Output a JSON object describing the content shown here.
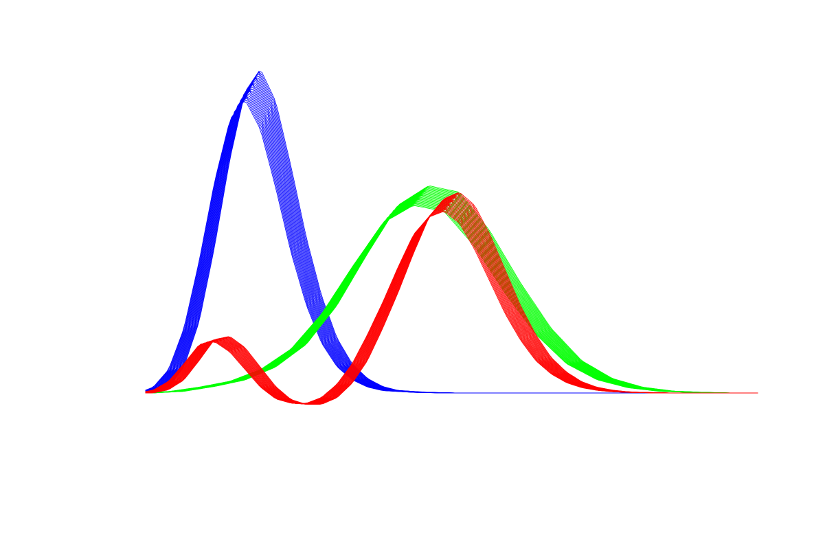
{
  "chart_data": {
    "type": "line",
    "title": "",
    "xlabel": "",
    "ylabel": "",
    "grid": false,
    "legend": "none",
    "axes_visible": false,
    "xlim": [
      380,
      780
    ],
    "ylim": [
      -0.05,
      1.0
    ],
    "series": [
      {
        "color": "#0000ff",
        "curve_count": 25,
        "x": [
          380,
          390,
          400,
          410,
          420,
          430,
          440,
          450,
          460,
          470,
          480,
          490,
          500,
          510,
          520,
          530,
          540,
          560,
          580,
          600,
          620,
          640,
          660,
          680,
          700,
          720,
          740,
          760,
          780
        ],
        "y": [
          0.0,
          0.02,
          0.08,
          0.22,
          0.45,
          0.72,
          0.93,
          1.0,
          0.9,
          0.7,
          0.48,
          0.3,
          0.17,
          0.09,
          0.045,
          0.02,
          0.008,
          0.002,
          0.0,
          0.0,
          0.0,
          0.0,
          0.0,
          0.0,
          0.0,
          0.0,
          0.0,
          0.0,
          0.0
        ]
      },
      {
        "color": "#00ff00",
        "curve_count": 25,
        "x": [
          380,
          400,
          420,
          440,
          460,
          480,
          500,
          520,
          540,
          560,
          580,
          600,
          620,
          640,
          660,
          680,
          700,
          720,
          740,
          760,
          780
        ],
        "y": [
          0.0,
          0.005,
          0.02,
          0.04,
          0.08,
          0.15,
          0.27,
          0.43,
          0.58,
          0.64,
          0.62,
          0.5,
          0.34,
          0.2,
          0.1,
          0.045,
          0.018,
          0.006,
          0.002,
          0.0,
          0.0
        ]
      },
      {
        "color": "#ff0000",
        "curve_count": 25,
        "x": [
          380,
          390,
          400,
          410,
          420,
          430,
          440,
          450,
          460,
          470,
          480,
          490,
          500,
          510,
          520,
          530,
          540,
          550,
          560,
          570,
          580,
          590,
          600,
          610,
          620,
          630,
          640,
          650,
          660,
          670,
          680,
          690,
          700,
          720,
          740,
          760,
          780
        ],
        "y": [
          0.0,
          0.01,
          0.04,
          0.1,
          0.165,
          0.175,
          0.14,
          0.08,
          0.02,
          -0.02,
          -0.035,
          -0.035,
          -0.015,
          0.03,
          0.1,
          0.2,
          0.31,
          0.43,
          0.54,
          0.6,
          0.62,
          0.58,
          0.49,
          0.38,
          0.27,
          0.18,
          0.11,
          0.065,
          0.035,
          0.018,
          0.009,
          0.004,
          0.002,
          0.0,
          0.0,
          0.0,
          0.0
        ]
      }
    ]
  }
}
